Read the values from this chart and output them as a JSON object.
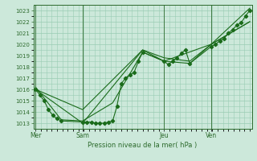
{
  "title": "Pression niveau de la mer( hPa )",
  "yticks": [
    1013,
    1014,
    1015,
    1016,
    1017,
    1018,
    1019,
    1020,
    1021,
    1022,
    1023
  ],
  "day_labels": [
    "Mer",
    "Sam",
    "Jeu",
    "Ven"
  ],
  "day_positions": [
    0.0,
    0.22,
    0.6,
    0.82
  ],
  "line_color": "#1a6b1a",
  "bg_color": "#cce8da",
  "grid_color": "#99ccb3",
  "axis_color": "#2d6b2d",
  "line1_x": [
    0.0,
    0.02,
    0.04,
    0.06,
    0.08,
    0.1,
    0.12,
    0.22,
    0.24,
    0.26,
    0.28,
    0.3,
    0.32,
    0.34,
    0.36,
    0.38,
    0.4,
    0.42,
    0.44,
    0.46,
    0.48,
    0.5,
    0.6,
    0.62,
    0.64,
    0.66,
    0.68,
    0.7,
    0.72,
    0.82,
    0.84,
    0.86,
    0.88,
    0.9,
    0.92,
    0.94,
    0.96,
    0.98,
    1.0
  ],
  "line1_y": [
    1016.0,
    1015.5,
    1015.0,
    1014.2,
    1013.7,
    1013.4,
    1013.2,
    1013.1,
    1013.1,
    1013.1,
    1013.0,
    1013.0,
    1013.0,
    1013.1,
    1013.2,
    1014.5,
    1016.5,
    1017.0,
    1017.3,
    1017.5,
    1018.5,
    1019.3,
    1018.5,
    1018.2,
    1018.5,
    1018.8,
    1019.2,
    1019.5,
    1018.3,
    1019.8,
    1020.0,
    1020.3,
    1020.5,
    1021.0,
    1021.3,
    1021.7,
    1021.9,
    1022.5,
    1023.0
  ],
  "line2_x": [
    0.0,
    0.12,
    0.22,
    0.36,
    0.5,
    0.6,
    0.72,
    0.82,
    1.0
  ],
  "line2_y": [
    1016.2,
    1013.3,
    1013.2,
    1014.8,
    1019.3,
    1018.5,
    1018.3,
    1020.0,
    1022.0
  ],
  "line3_x": [
    0.0,
    0.22,
    0.5,
    0.6,
    0.82,
    1.0
  ],
  "line3_y": [
    1016.0,
    1013.0,
    1019.5,
    1018.5,
    1020.0,
    1023.2
  ],
  "line4_x": [
    0.0,
    0.22,
    0.5,
    0.6,
    0.72,
    0.82,
    1.0
  ],
  "line4_y": [
    1016.0,
    1014.2,
    1019.5,
    1018.8,
    1018.5,
    1020.0,
    1022.0
  ]
}
